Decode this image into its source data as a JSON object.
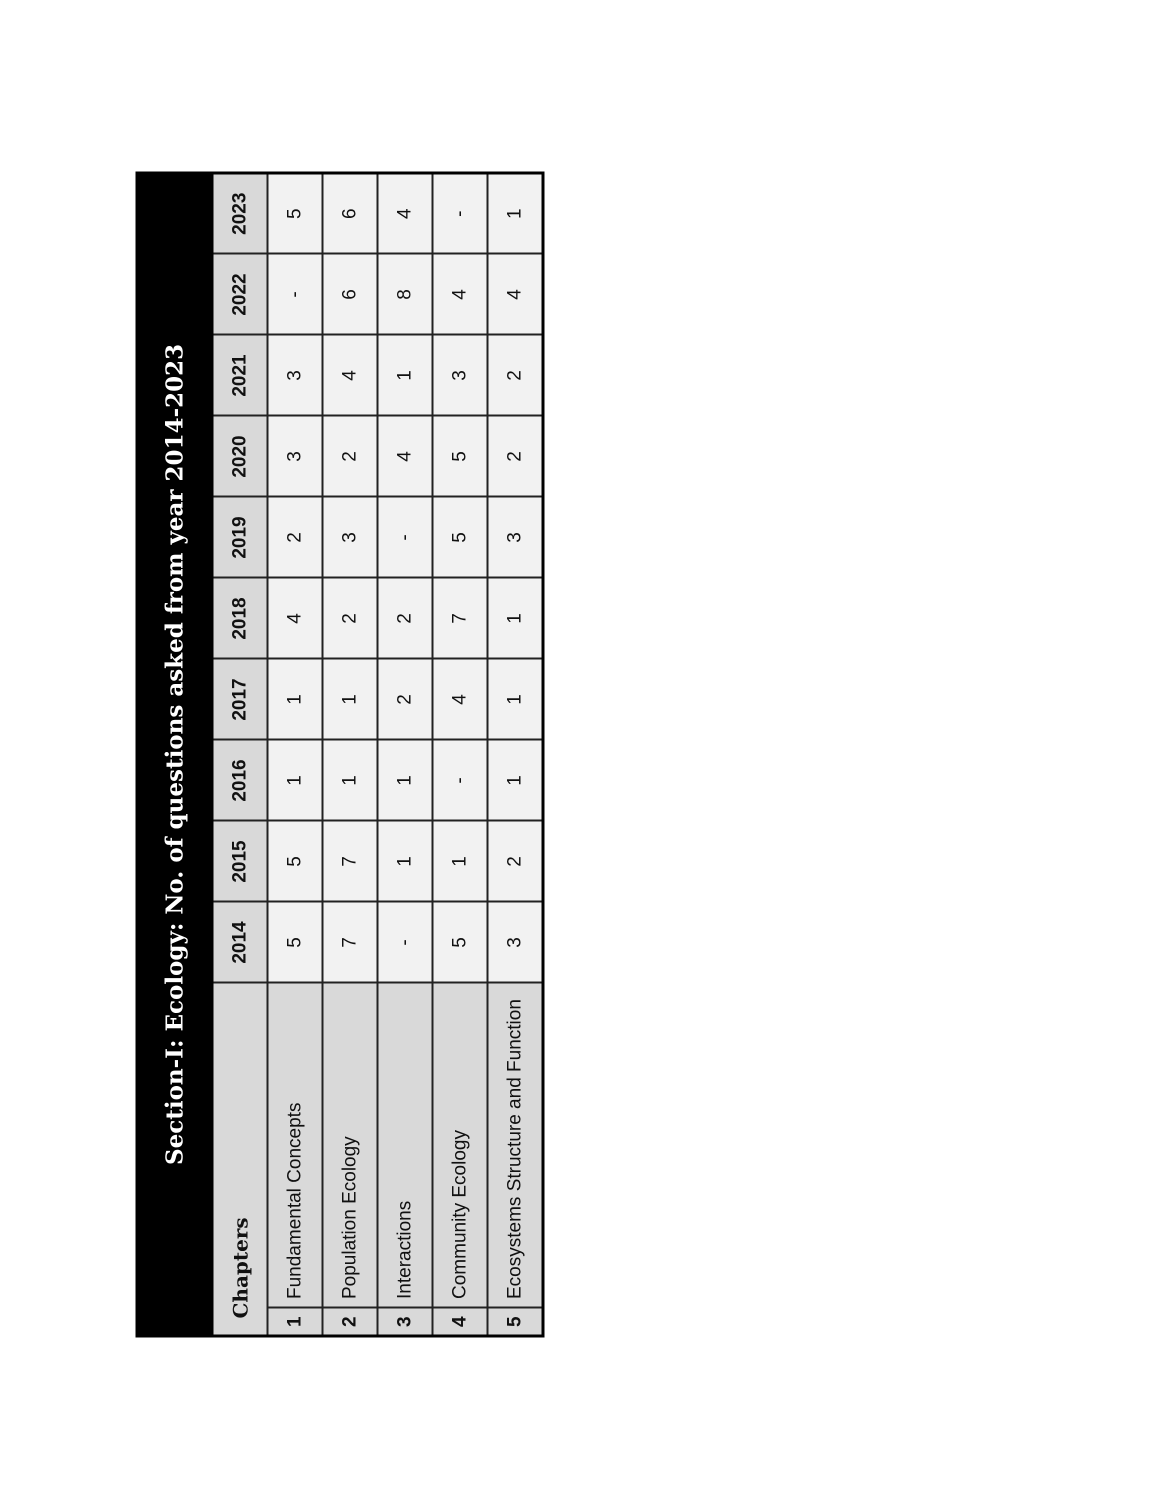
{
  "title": "Section-I: Ecology: No. of questions asked from year 2014-2023",
  "header": {
    "chapters": "Chapters",
    "years": [
      "2014",
      "2015",
      "2016",
      "2017",
      "2018",
      "2019",
      "2020",
      "2021",
      "2022",
      "2023"
    ]
  },
  "rows": [
    {
      "num": "1",
      "chapter": "Fundamental Concepts",
      "values": [
        "5",
        "5",
        "1",
        "1",
        "4",
        "2",
        "3",
        "3",
        "-",
        "5"
      ]
    },
    {
      "num": "2",
      "chapter": "Population Ecology",
      "values": [
        "7",
        "7",
        "1",
        "1",
        "2",
        "3",
        "2",
        "4",
        "6",
        "6"
      ]
    },
    {
      "num": "3",
      "chapter": "Interactions",
      "values": [
        "-",
        "1",
        "1",
        "2",
        "2",
        "-",
        "4",
        "1",
        "8",
        "4"
      ]
    },
    {
      "num": "4",
      "chapter": "Community Ecology",
      "values": [
        "5",
        "1",
        "-",
        "4",
        "7",
        "5",
        "5",
        "3",
        "4",
        "-"
      ]
    },
    {
      "num": "5",
      "chapter": "Ecosystems Structure and Function",
      "values": [
        "3",
        "2",
        "1",
        "1",
        "1",
        "3",
        "2",
        "2",
        "4",
        "1"
      ]
    }
  ],
  "colors": {
    "title_bg": "#000000",
    "label_bg": "#d9d9d9",
    "cell_bg": "#f2f2f2"
  }
}
